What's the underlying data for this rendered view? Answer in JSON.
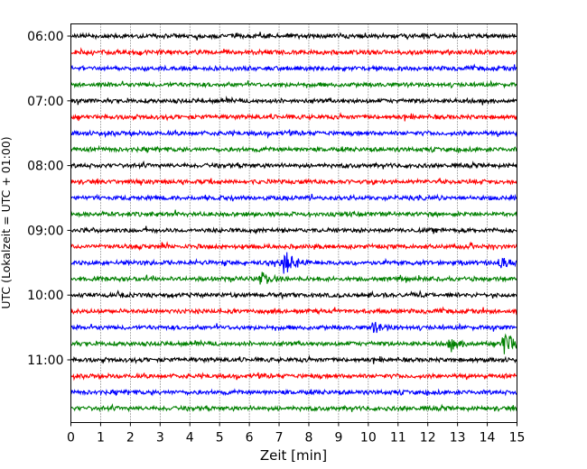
{
  "chart_data": {
    "type": "line",
    "title": "",
    "xlabel": "Zeit  [min]",
    "ylabel": "UTC (Lokalzeit = UTC + 01:00)",
    "xlim": [
      0,
      15
    ],
    "x_ticks": [
      0,
      1,
      2,
      3,
      4,
      5,
      6,
      7,
      8,
      9,
      10,
      11,
      12,
      13,
      14,
      15
    ],
    "y_tick_labels": [
      "06:00",
      "07:00",
      "08:00",
      "09:00",
      "10:00",
      "11:00"
    ],
    "trace_start_time": "06:00",
    "trace_minutes": 15,
    "trace_count": 24,
    "trace_colors": [
      "#000000",
      "#ff0000",
      "#0000ff",
      "#008000"
    ],
    "grid": {
      "x": "dotted",
      "y": "none"
    },
    "legend": "none",
    "events": [
      {
        "trace_time": "09:30",
        "minute": 7.2,
        "amplitude": "large",
        "note": "burst"
      },
      {
        "trace_time": "09:45",
        "minute": 6.4,
        "amplitude": "medium"
      },
      {
        "trace_time": "10:30",
        "minute": 10.2,
        "amplitude": "small"
      },
      {
        "trace_time": "10:45",
        "minute": 12.8,
        "amplitude": "small"
      },
      {
        "trace_time": "10:45",
        "minute": 14.6,
        "amplitude": "large"
      },
      {
        "trace_time": "09:30",
        "minute": 14.5,
        "amplitude": "small"
      }
    ]
  }
}
